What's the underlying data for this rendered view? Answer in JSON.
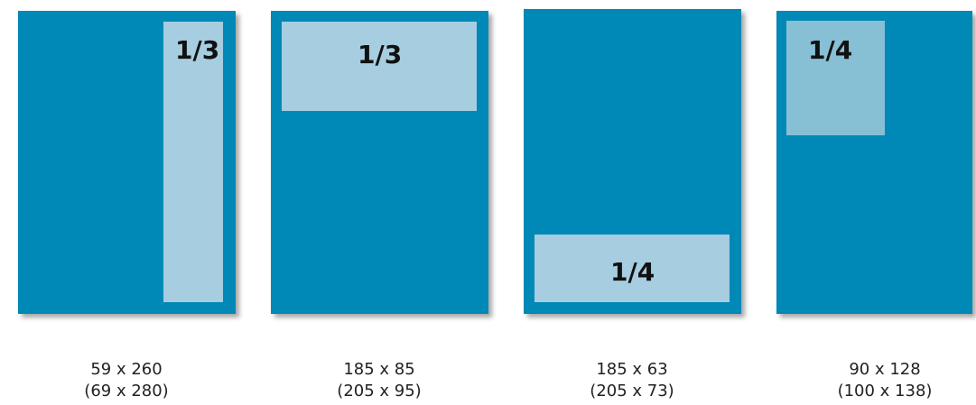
{
  "colors": {
    "page": "#0088b6",
    "ad_area": "#a6cde0",
    "ad_area_corner": "#87bfd4",
    "text": "#111111"
  },
  "layouts": [
    {
      "fraction": "1/3",
      "placement": "right-column",
      "size": "59 x 260",
      "bleed_size": "(69 x 280)"
    },
    {
      "fraction": "1/3",
      "placement": "top-band",
      "size": "185 x 85",
      "bleed_size": "(205 x 95)"
    },
    {
      "fraction": "1/4",
      "placement": "bottom-band",
      "size": "185 x 63",
      "bleed_size": "(205 x 73)"
    },
    {
      "fraction": "1/4",
      "placement": "top-left-corner",
      "size": "90 x 128",
      "bleed_size": "(100 x 138)"
    }
  ]
}
